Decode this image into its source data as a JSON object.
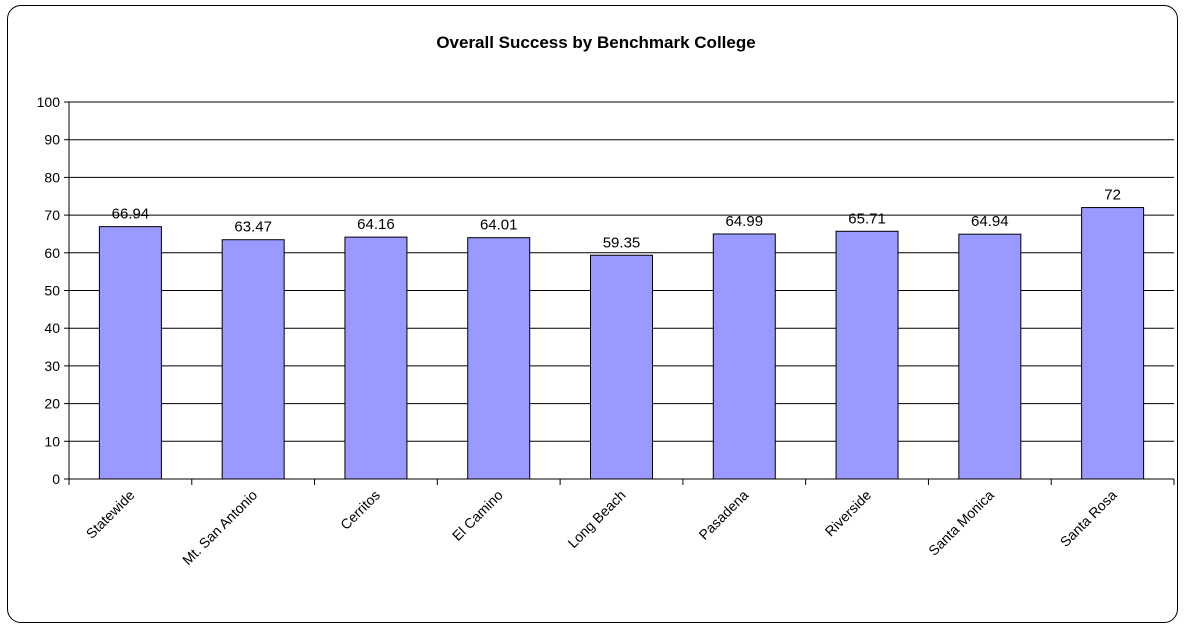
{
  "chart_data": {
    "type": "bar",
    "title": "Overall Success by Benchmark College",
    "xlabel": "",
    "ylabel": "",
    "ylim": [
      0,
      100
    ],
    "y_ticks": [
      0,
      10,
      20,
      30,
      40,
      50,
      60,
      70,
      80,
      90,
      100
    ],
    "grid": true,
    "legend": "none",
    "bar_color": "#9999ff",
    "categories": [
      "Statewide",
      "Mt. San Antonio",
      "Cerritos",
      "El Camino",
      "Long Beach",
      "Pasadena",
      "Riverside",
      "Santa Monica",
      "Santa Rosa"
    ],
    "values": [
      66.94,
      63.47,
      64.16,
      64.01,
      59.35,
      64.99,
      65.71,
      64.94,
      72
    ],
    "value_labels": [
      "66.94",
      "63.47",
      "64.16",
      "64.01",
      "59.35",
      "64.99",
      "65.71",
      "64.94",
      "72"
    ]
  }
}
